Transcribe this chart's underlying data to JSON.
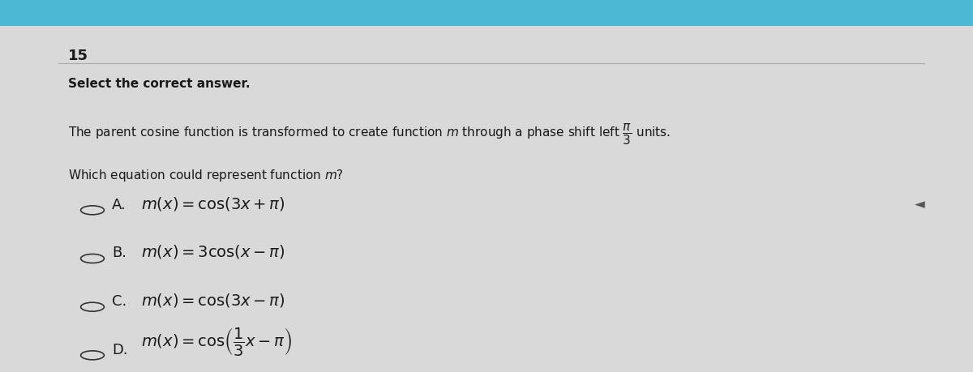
{
  "question_number": "15",
  "instruction": "Select the correct answer.",
  "problem_text": "The parent cosine function is transformed to create function $m$ through a phase shift left $\\dfrac{\\pi}{3}$ units.",
  "question": "Which equation could represent function $m$?",
  "options": [
    {
      "label": "A.",
      "equation": "$m(x) = \\cos(3x + \\pi)$"
    },
    {
      "label": "B.",
      "equation": "$m(x) = 3\\cos(x - \\pi)$"
    },
    {
      "label": "C.",
      "equation": "$m(x) = \\cos(3x - \\pi)$"
    },
    {
      "label": "D.",
      "equation": "$m(x) = \\cos\\!\\left(\\dfrac{1}{3}x - \\pi\\right)$"
    }
  ],
  "bg_color": "#d9d9d9",
  "top_bar_color": "#4db8d4",
  "text_color": "#1a1a1a",
  "font_size_number": 13,
  "font_size_instruction": 11,
  "font_size_problem": 11,
  "font_size_options": 13
}
